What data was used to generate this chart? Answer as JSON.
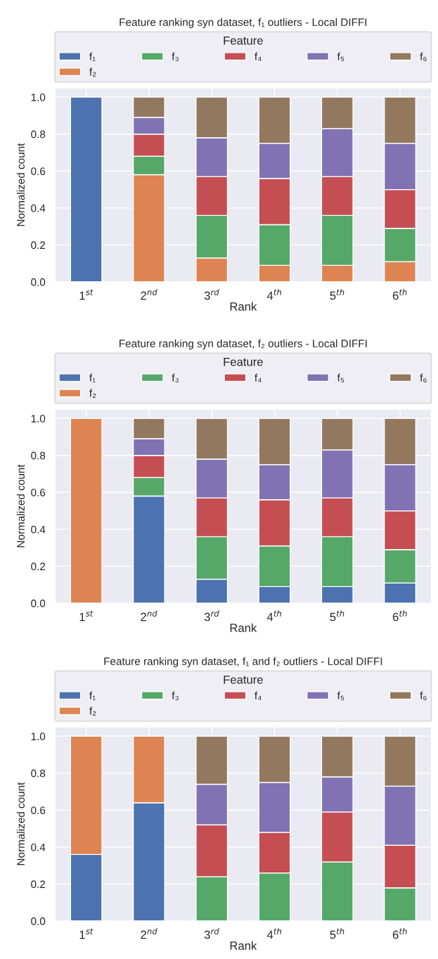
{
  "chart_data": [
    {
      "type": "bar",
      "stacked": true,
      "title": "Feature ranking syn dataset, f₁ outliers - Local DIFFI",
      "xlabel": "Rank",
      "ylabel": "Normalized count",
      "legend_title": "Feature",
      "legend": "top",
      "grid": true,
      "categories": [
        "1$^{st}$",
        "2$^{nd}$",
        "3$^{rd}$",
        "4$^{th}$",
        "5$^{th}$",
        "6$^{th}$"
      ],
      "ylim": [
        0,
        1.05
      ],
      "yticks": [
        {
          "value": 0,
          "label": "0.0"
        },
        {
          "value": 0.2,
          "label": "0.2"
        },
        {
          "value": 0.4,
          "label": "0.4"
        },
        {
          "value": 0.6,
          "label": "0.6"
        },
        {
          "value": 0.8,
          "label": "0.8"
        },
        {
          "value": 1,
          "label": "1.0"
        }
      ],
      "series": [
        {
          "name": "f₁",
          "color": "#4c72b0",
          "values": [
            1,
            null,
            null,
            null,
            null,
            null
          ]
        },
        {
          "name": "f₂",
          "color": "#dd8452",
          "values": [
            null,
            0.58,
            0.13,
            0.09,
            0.09,
            0.11
          ]
        },
        {
          "name": "f₃",
          "color": "#55a868",
          "values": [
            null,
            0.1,
            0.23,
            0.22,
            0.27,
            0.18
          ]
        },
        {
          "name": "f₄",
          "color": "#c44e52",
          "values": [
            null,
            0.12,
            0.21,
            0.25,
            0.21,
            0.21
          ]
        },
        {
          "name": "f₅",
          "color": "#8172b3",
          "values": [
            null,
            0.09,
            0.21,
            0.19,
            0.26,
            0.25
          ]
        },
        {
          "name": "f₆",
          "color": "#937860",
          "values": [
            null,
            0.11,
            0.22,
            0.25,
            0.17,
            0.25
          ]
        }
      ]
    },
    {
      "type": "bar",
      "stacked": true,
      "title": "Feature ranking syn dataset, f₂ outliers - Local DIFFI",
      "xlabel": "Rank",
      "ylabel": "Normalized count",
      "legend_title": "Feature",
      "legend": "top",
      "grid": true,
      "categories": [
        "1$^{st}$",
        "2$^{nd}$",
        "3$^{rd}$",
        "4$^{th}$",
        "5$^{th}$",
        "6$^{th}$"
      ],
      "ylim": [
        0,
        1.05
      ],
      "yticks": [
        {
          "value": 0,
          "label": "0.0"
        },
        {
          "value": 0.2,
          "label": "0.2"
        },
        {
          "value": 0.4,
          "label": "0.4"
        },
        {
          "value": 0.6,
          "label": "0.6"
        },
        {
          "value": 0.8,
          "label": "0.8"
        },
        {
          "value": 1,
          "label": "1.0"
        }
      ],
      "series": [
        {
          "name": "f₁",
          "color": "#4c72b0",
          "values": [
            null,
            0.58,
            0.13,
            0.09,
            0.09,
            0.11
          ]
        },
        {
          "name": "f₂",
          "color": "#dd8452",
          "values": [
            1,
            null,
            null,
            null,
            null,
            null
          ]
        },
        {
          "name": "f₃",
          "color": "#55a868",
          "values": [
            null,
            0.1,
            0.23,
            0.22,
            0.27,
            0.18
          ]
        },
        {
          "name": "f₄",
          "color": "#c44e52",
          "values": [
            null,
            0.12,
            0.21,
            0.25,
            0.21,
            0.21
          ]
        },
        {
          "name": "f₅",
          "color": "#8172b3",
          "values": [
            null,
            0.09,
            0.21,
            0.19,
            0.26,
            0.25
          ]
        },
        {
          "name": "f₆",
          "color": "#937860",
          "values": [
            null,
            0.11,
            0.22,
            0.25,
            0.17,
            0.25
          ]
        }
      ]
    },
    {
      "type": "bar",
      "stacked": true,
      "title": "Feature ranking syn dataset, f₁ and f₂ outliers - Local DIFFI",
      "xlabel": "Rank",
      "ylabel": "Normalized count",
      "legend_title": "Feature",
      "legend": "top",
      "grid": true,
      "categories": [
        "1$^{st}$",
        "2$^{nd}$",
        "3$^{rd}$",
        "4$^{th}$",
        "5$^{th}$",
        "6$^{th}$"
      ],
      "ylim": [
        0,
        1.05
      ],
      "yticks": [
        {
          "value": 0,
          "label": "0.0"
        },
        {
          "value": 0.2,
          "label": "0.2"
        },
        {
          "value": 0.4,
          "label": "0.4"
        },
        {
          "value": 0.6,
          "label": "0.6"
        },
        {
          "value": 0.8,
          "label": "0.8"
        },
        {
          "value": 1,
          "label": "1.0"
        }
      ],
      "series": [
        {
          "name": "f₁",
          "color": "#4c72b0",
          "values": [
            0.36,
            0.64,
            null,
            null,
            null,
            null
          ]
        },
        {
          "name": "f₂",
          "color": "#dd8452",
          "values": [
            0.64,
            0.36,
            null,
            null,
            null,
            null
          ]
        },
        {
          "name": "f₃",
          "color": "#55a868",
          "values": [
            null,
            null,
            0.24,
            0.26,
            0.32,
            0.18
          ]
        },
        {
          "name": "f₄",
          "color": "#c44e52",
          "values": [
            null,
            null,
            0.28,
            0.22,
            0.27,
            0.23
          ]
        },
        {
          "name": "f₅",
          "color": "#8172b3",
          "values": [
            null,
            null,
            0.22,
            0.27,
            0.19,
            0.32
          ]
        },
        {
          "name": "f₆",
          "color": "#937860",
          "values": [
            null,
            null,
            0.26,
            0.25,
            0.22,
            0.27
          ]
        }
      ]
    }
  ]
}
